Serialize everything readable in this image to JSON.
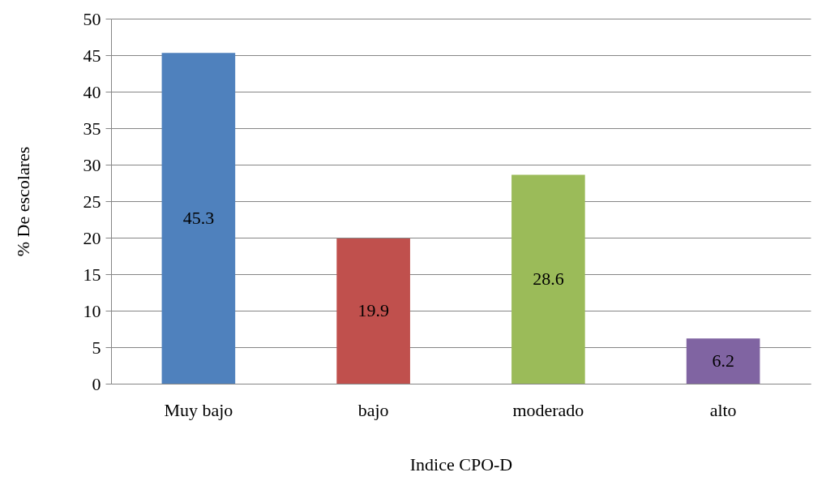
{
  "chart_data": {
    "type": "bar",
    "xlabel": "Indice CPO-D",
    "ylabel": "% De escolares",
    "categories": [
      "Muy bajo",
      "bajo",
      "moderado",
      "alto"
    ],
    "values": [
      45.3,
      19.9,
      28.6,
      6.2
    ],
    "colors": [
      "#4f81bd",
      "#c0504d",
      "#9bbb59",
      "#8064a2"
    ],
    "ylim": [
      0,
      50
    ],
    "yticks": [
      0,
      5,
      10,
      15,
      20,
      25,
      30,
      35,
      40,
      45,
      50
    ],
    "grid": "y",
    "data_labels": true
  }
}
